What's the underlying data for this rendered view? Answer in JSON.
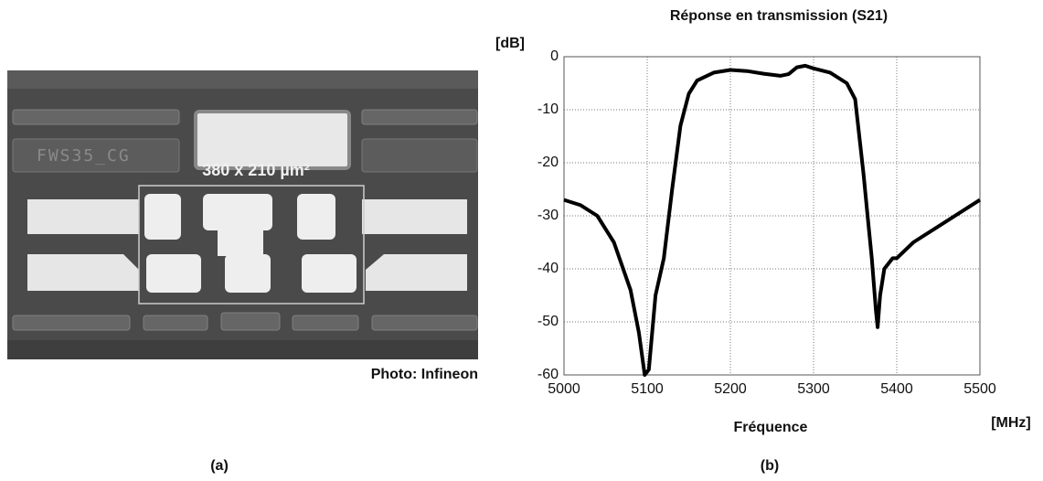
{
  "photo": {
    "chip_label": "FWS35_CG",
    "dimension": "380 x 210 µm²",
    "credit": "Photo: Infineon",
    "caption": "(a)"
  },
  "chart_data": {
    "type": "line",
    "title": "Réponse en transmission (S21)",
    "caption": "(b)",
    "y_unit": "[dB]",
    "x_label": "Fréquence",
    "x_unit": "[MHz]",
    "x": [
      5000,
      5020,
      5040,
      5060,
      5080,
      5090,
      5097,
      5102,
      5110,
      5120,
      5130,
      5140,
      5150,
      5160,
      5180,
      5200,
      5220,
      5240,
      5260,
      5270,
      5280,
      5290,
      5300,
      5320,
      5340,
      5350,
      5360,
      5365,
      5370,
      5375,
      5377,
      5380,
      5385,
      5395,
      5400,
      5420,
      5440,
      5460,
      5480,
      5500
    ],
    "values": [
      -27,
      -28,
      -30,
      -35,
      -44,
      -52,
      -60,
      -59,
      -45,
      -38,
      -25,
      -13,
      -7,
      -4.5,
      -3,
      -2.5,
      -2.7,
      -3.2,
      -3.6,
      -3.3,
      -2,
      -1.7,
      -2.2,
      -3,
      -5,
      -8,
      -22,
      -30,
      -38,
      -48,
      -51,
      -45,
      -40,
      -38,
      -38,
      -35,
      -33,
      -31,
      -29,
      -27
    ],
    "color": "#000000",
    "xlim": [
      5000,
      5500
    ],
    "xticks": [
      5000,
      5100,
      5200,
      5300,
      5400,
      5500
    ],
    "ylim": [
      -60,
      0
    ],
    "yticks": [
      0,
      -10,
      -20,
      -30,
      -40,
      -50,
      -60
    ],
    "grid": true
  }
}
